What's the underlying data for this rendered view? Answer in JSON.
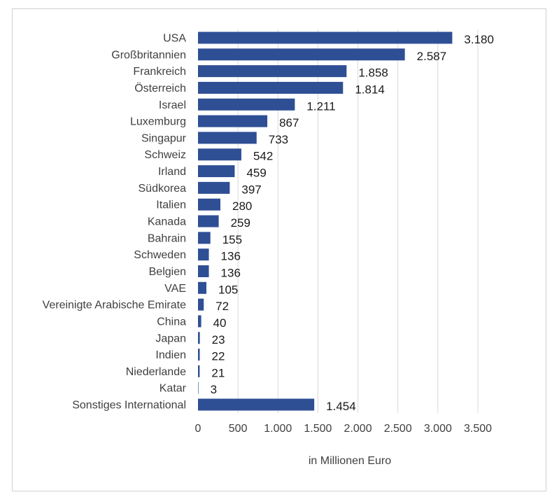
{
  "chart_data": {
    "type": "bar",
    "orientation": "horizontal",
    "title": "",
    "xlabel": "in Millionen Euro",
    "ylabel": "",
    "xlim": [
      0,
      3500
    ],
    "xticks": [
      0,
      500,
      1000,
      1500,
      2000,
      2500,
      3000,
      3500
    ],
    "xtick_labels": [
      "0",
      "500",
      "1.000",
      "1.500",
      "2.000",
      "2.500",
      "3.000",
      "3.500"
    ],
    "grid": "vertical",
    "bar_color": "#2f4f95",
    "categories": [
      "USA",
      "Großbritannien",
      "Frankreich",
      "Österreich",
      "Israel",
      "Luxemburg",
      "Singapur",
      "Schweiz",
      "Irland",
      "Südkorea",
      "Italien",
      "Kanada",
      "Bahrain",
      "Schweden",
      "Belgien",
      "VAE",
      "Vereinigte Arabische Emirate",
      "China",
      "Japan",
      "Indien",
      "Niederlande",
      "Katar",
      "Sonstiges International"
    ],
    "values": [
      3180,
      2587,
      1858,
      1814,
      1211,
      867,
      733,
      542,
      459,
      397,
      280,
      259,
      155,
      136,
      136,
      105,
      72,
      40,
      23,
      22,
      21,
      3,
      1454
    ],
    "value_labels": [
      "3.180",
      "2.587",
      "1.858",
      "1.814",
      "1.211",
      "867",
      "733",
      "542",
      "459",
      "397",
      "280",
      "259",
      "155",
      "136",
      "136",
      "105",
      "72",
      "40",
      "23",
      "22",
      "21",
      "3",
      "1.454"
    ]
  }
}
